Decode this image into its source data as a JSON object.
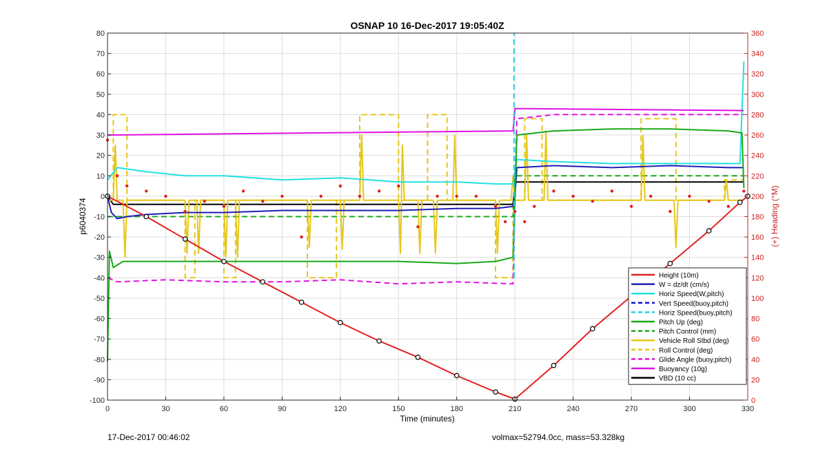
{
  "chart_data": {
    "type": "line",
    "title": "OSNAP 10 16-Dec-2017 19:05:40Z",
    "xlabel": "Time (minutes)",
    "ylabel_left": "p6040374",
    "ylabel_right": "(+) Heading (°M)",
    "xlim": [
      0,
      330
    ],
    "ylim": [
      -100,
      80
    ],
    "ylim_right": [
      0,
      360
    ],
    "xticks": [
      0,
      30,
      60,
      90,
      120,
      150,
      180,
      210,
      240,
      270,
      300,
      330
    ],
    "yticks": [
      80,
      70,
      60,
      50,
      40,
      30,
      20,
      10,
      0,
      -10,
      -20,
      -30,
      -40,
      -50,
      -60,
      -70,
      -80,
      -90,
      -100
    ],
    "yticks_right": [
      360,
      340,
      320,
      300,
      280,
      260,
      240,
      220,
      200,
      180,
      160,
      140,
      120,
      100,
      80,
      60,
      40,
      20,
      0
    ],
    "grid": true,
    "legend_position": "bottom-right",
    "series": [
      {
        "name": "Height (10m)",
        "color": "#e02020",
        "style": "solid",
        "x": [
          0,
          20,
          40,
          60,
          80,
          100,
          120,
          140,
          160,
          180,
          200,
          210,
          230,
          250,
          270,
          290,
          310,
          326,
          330
        ],
        "y": [
          0,
          -10,
          -21,
          -32,
          -42,
          -52,
          -62,
          -71,
          -79,
          -88,
          -96,
          -99.5,
          -83,
          -65,
          -49,
          -33,
          -17,
          -3,
          0
        ]
      },
      {
        "name": "W = dz/dt (cm/s)",
        "color": "#1f1fb4",
        "style": "solid",
        "x": [
          0,
          2,
          5,
          10,
          20,
          40,
          60,
          90,
          120,
          150,
          180,
          200,
          209,
          210,
          211,
          230,
          260,
          290,
          320,
          328
        ],
        "y": [
          0,
          -8,
          -11,
          -10,
          -9,
          -8,
          -8,
          -7,
          -7,
          -7,
          -6,
          -6,
          -5,
          0,
          14,
          15,
          14,
          15,
          14,
          14
        ]
      },
      {
        "name": "Horiz Speed(W,pitch)",
        "color": "#22e0e0",
        "style": "solid",
        "x": [
          0,
          5,
          20,
          40,
          60,
          90,
          120,
          150,
          180,
          200,
          209,
          211,
          230,
          260,
          290,
          320,
          326,
          328
        ],
        "y": [
          8,
          14,
          12,
          10,
          10,
          8,
          9,
          7,
          7,
          6,
          6,
          18,
          17,
          16,
          16,
          16,
          16,
          66
        ]
      },
      {
        "name": "Vert Speed(buoy,pitch)",
        "color": "#1414dc",
        "style": "dashed",
        "x": [],
        "y": []
      },
      {
        "name": "Horiz Speed(buoy,pitch)",
        "color": "#22d0e8",
        "style": "dashed",
        "x": [
          209.5,
          209.5
        ],
        "y": [
          -40,
          80
        ]
      },
      {
        "name": "Pitch Up (deg)",
        "color": "#18a818",
        "style": "solid",
        "x": [
          0,
          1,
          3,
          8,
          30,
          60,
          90,
          120,
          150,
          180,
          200,
          209,
          210,
          211,
          230,
          260,
          290,
          320,
          327,
          328
        ],
        "y": [
          -81,
          -27,
          -35,
          -32,
          -32,
          -32,
          -32,
          -32,
          -32,
          -33,
          -32,
          -30,
          0,
          30,
          32,
          33,
          33,
          32,
          31,
          4
        ]
      },
      {
        "name": "Pitch Control (mm)",
        "color": "#18a818",
        "style": "dashed",
        "x": [
          0,
          209,
          210,
          328
        ],
        "y": [
          -10,
          -10,
          10,
          10
        ]
      },
      {
        "name": "Vehicle Roll Stbd (deg)",
        "color": "#e6c619",
        "style": "solid",
        "x": [
          0,
          3,
          4,
          5,
          8,
          9,
          10,
          40,
          41,
          42,
          46,
          47,
          48,
          60,
          61,
          62,
          66,
          67,
          68,
          103,
          104,
          105,
          120,
          121,
          122,
          130,
          131,
          132,
          150,
          151,
          152,
          153,
          160,
          161,
          162,
          168,
          169,
          170,
          178,
          179,
          180,
          200,
          201,
          202,
          208,
          209,
          210,
          215,
          216,
          217,
          225,
          226,
          227,
          275,
          276,
          277,
          292,
          293,
          294,
          318,
          319,
          320,
          328
        ],
        "y": [
          -2,
          -2,
          25,
          -2,
          -2,
          -30,
          -2,
          -2,
          -28,
          -2,
          -2,
          -28,
          -2,
          -2,
          -30,
          -2,
          -2,
          -30,
          -2,
          -2,
          -25,
          -2,
          -2,
          -26,
          -2,
          -2,
          30,
          -2,
          -2,
          -28,
          25,
          -2,
          -2,
          -28,
          -2,
          -2,
          -28,
          -2,
          -2,
          30,
          -2,
          -2,
          -28,
          -2,
          -2,
          10,
          -2,
          -2,
          30,
          -2,
          -2,
          32,
          -2,
          -2,
          30,
          -2,
          -2,
          -25,
          -2,
          -2,
          8,
          -2,
          -2
        ]
      },
      {
        "name": "Roll Control (deg)",
        "color": "#e6c619",
        "style": "dashed",
        "x": [
          0,
          3,
          3,
          10,
          10,
          40,
          40,
          45,
          45,
          60,
          60,
          66,
          66,
          103,
          103,
          118,
          118,
          130,
          130,
          150,
          150,
          165,
          165,
          175,
          175,
          200,
          200,
          209,
          209,
          215,
          215,
          224,
          224,
          275,
          275,
          293,
          293,
          318,
          318,
          328
        ],
        "y": [
          -2,
          -2,
          40,
          40,
          -2,
          -2,
          -40,
          -40,
          -2,
          -2,
          -40,
          -40,
          -2,
          -2,
          -40,
          -40,
          -2,
          -2,
          40,
          40,
          -2,
          -2,
          40,
          40,
          -2,
          -2,
          -40,
          -40,
          -2,
          -2,
          38,
          38,
          -2,
          -2,
          38,
          38,
          -2,
          -2,
          8,
          8
        ]
      },
      {
        "name": "Glide Angle (buoy,pitch)",
        "color": "#e010e0",
        "style": "dashed",
        "x": [
          0,
          5,
          30,
          60,
          90,
          120,
          150,
          180,
          209,
          211,
          230,
          260,
          290,
          328
        ],
        "y": [
          -40,
          -42,
          -41,
          -42,
          -42,
          -41,
          -43,
          -42,
          -43,
          38,
          40,
          40,
          40,
          40
        ]
      },
      {
        "name": "Buoyancy (10g)",
        "color": "#e010e0",
        "style": "solid",
        "x": [
          0,
          209,
          210,
          328
        ],
        "y": [
          30,
          32,
          43,
          42
        ]
      },
      {
        "name": "VBD (10 cc)",
        "color": "#000000",
        "style": "solid",
        "x": [
          0,
          3,
          209,
          210,
          328
        ],
        "y": [
          0,
          -4,
          -4,
          7,
          7
        ]
      },
      {
        "name": "Heading (scatter, right axis)",
        "color": "#e02020",
        "style": "dots",
        "axis": "right",
        "x": [
          0,
          5,
          10,
          20,
          30,
          40,
          50,
          60,
          70,
          80,
          90,
          100,
          110,
          120,
          130,
          140,
          150,
          160,
          170,
          180,
          190,
          200,
          205,
          210,
          215,
          220,
          230,
          240,
          250,
          260,
          270,
          280,
          290,
          300,
          310,
          320,
          328
        ],
        "y": [
          255,
          220,
          210,
          205,
          200,
          185,
          195,
          190,
          205,
          195,
          200,
          160,
          200,
          210,
          200,
          205,
          210,
          170,
          200,
          200,
          200,
          190,
          175,
          185,
          175,
          190,
          205,
          200,
          195,
          205,
          190,
          200,
          185,
          200,
          195,
          190,
          205
        ]
      }
    ]
  },
  "footer": {
    "timestamp": "17-Dec-2017 00:46:02",
    "info": "volmax=52794.0cc, mass=53.328kg"
  }
}
